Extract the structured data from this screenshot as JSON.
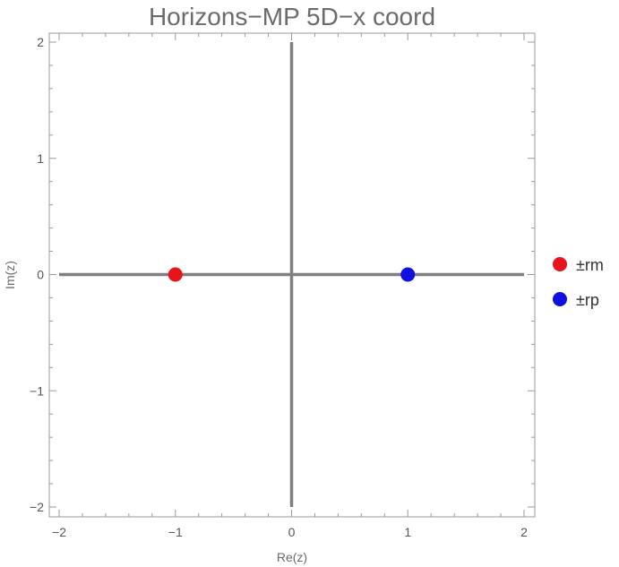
{
  "chart_data": {
    "type": "scatter",
    "title": "Horizons−MP 5D−x coord",
    "xlabel": "Re(z)",
    "ylabel": "Im(z)",
    "xlim": [
      -2,
      2
    ],
    "ylim": [
      -2,
      2
    ],
    "x_ticks": [
      -2,
      -1,
      0,
      1,
      2
    ],
    "y_ticks": [
      -2,
      -1,
      0,
      1,
      2
    ],
    "tick_labels_x": [
      "−2",
      "−1",
      "0",
      "1",
      "2"
    ],
    "tick_labels_y": [
      "−2",
      "−1",
      "0",
      "1",
      "2"
    ],
    "grid": false,
    "legend_position": "right",
    "series": [
      {
        "name": "±rm",
        "color": "#e8141b",
        "points": [
          [
            -1,
            0
          ]
        ]
      },
      {
        "name": "±rp",
        "color": "#1010e0",
        "points": [
          [
            1,
            0
          ]
        ]
      }
    ],
    "reference_lines": {
      "color": "#808080",
      "horizontal_y": 0,
      "vertical_x": 0
    }
  }
}
